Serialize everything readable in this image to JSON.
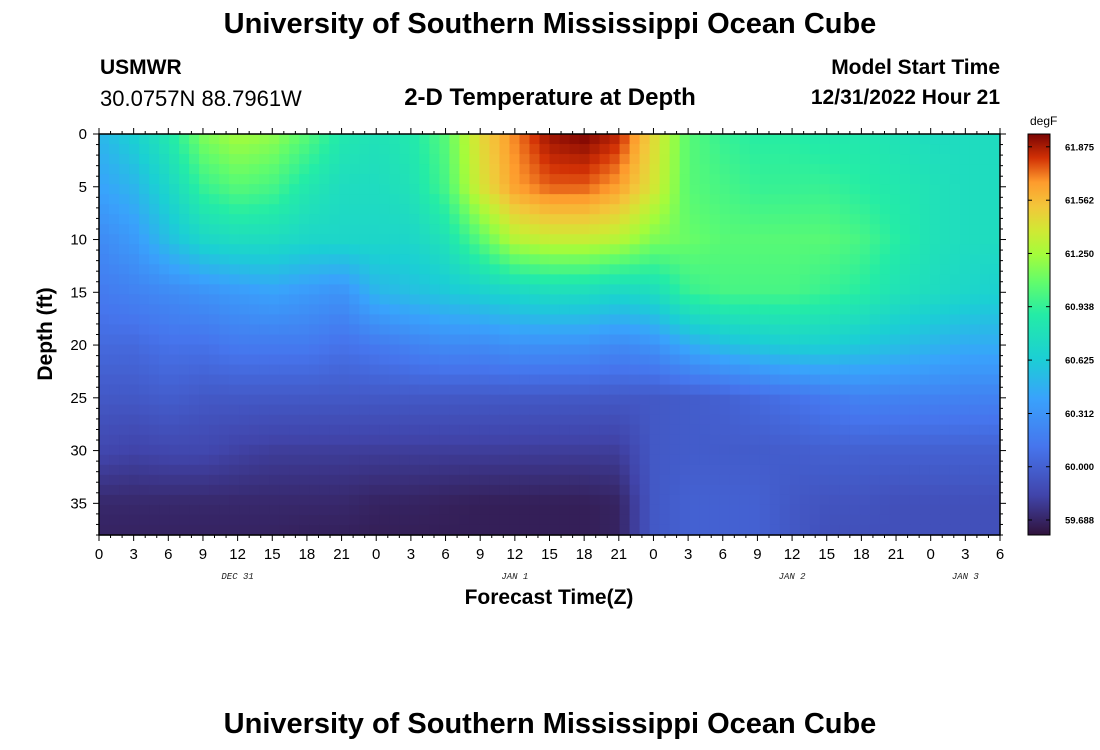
{
  "header": {
    "title": "University of Southern Mississippi Ocean Cube",
    "station": "USMWR",
    "coords": "30.0757N  88.7961W",
    "subtitle": "2-D Temperature at Depth",
    "model_start_label": "Model Start Time",
    "model_start_value": "12/31/2022 Hour 21"
  },
  "footer": {
    "title": "University of Southern Mississippi Ocean Cube"
  },
  "chart_data": {
    "type": "heatmap",
    "title": "2-D Temperature at Depth",
    "xlabel": "Forecast Time(Z)",
    "ylabel": "Depth (ft)",
    "x_range_hours": [
      0,
      78
    ],
    "y_range_ft": [
      0,
      38
    ],
    "y_inverted": true,
    "x_ticks": [
      "0",
      "3",
      "6",
      "9",
      "12",
      "15",
      "18",
      "21",
      "0",
      "3",
      "6",
      "9",
      "12",
      "15",
      "18",
      "21",
      "0",
      "3",
      "6",
      "9",
      "12",
      "15",
      "18",
      "21",
      "0",
      "3",
      "6"
    ],
    "y_ticks": [
      0,
      5,
      10,
      15,
      20,
      25,
      30,
      35
    ],
    "date_labels": [
      {
        "label": "DEC 31",
        "hour": 12
      },
      {
        "label": "JAN 1",
        "hour": 36
      },
      {
        "label": "JAN 2",
        "hour": 60
      },
      {
        "label": "JAN 3",
        "hour": 75
      }
    ],
    "colorbar": {
      "unit": "degF",
      "min": 59.6,
      "max": 61.95,
      "ticks": [
        59.688,
        60.0,
        60.312,
        60.625,
        60.938,
        61.25,
        61.562,
        61.875
      ],
      "tick_labels": [
        "59.688",
        "60.000",
        "60.312",
        "60.625",
        "60.938",
        "61.250",
        "61.562",
        "61.875"
      ]
    },
    "grid_depths_ft": [
      0,
      5,
      10,
      15,
      20,
      25,
      30,
      35,
      38
    ],
    "grid_hours": [
      0,
      3,
      6,
      9,
      12,
      15,
      18,
      21,
      24,
      27,
      30,
      33,
      36,
      39,
      42,
      45,
      48,
      51,
      54,
      57,
      60,
      63,
      66,
      69,
      72,
      75,
      78
    ],
    "values": [
      [
        60.5,
        60.65,
        60.85,
        61.15,
        61.25,
        61.2,
        61.05,
        60.85,
        60.8,
        60.85,
        61.05,
        61.45,
        61.7,
        61.9,
        61.95,
        61.85,
        61.45,
        61.05,
        60.95,
        60.9,
        60.9,
        60.85,
        60.85,
        60.8,
        60.75,
        60.75,
        60.75
      ],
      [
        60.4,
        60.5,
        60.7,
        60.95,
        61.05,
        61.0,
        60.85,
        60.75,
        60.75,
        60.8,
        61.0,
        61.4,
        61.65,
        61.75,
        61.75,
        61.65,
        61.4,
        61.05,
        61.0,
        60.95,
        60.95,
        60.95,
        60.9,
        60.85,
        60.8,
        60.75,
        60.75
      ],
      [
        60.25,
        60.35,
        60.55,
        60.7,
        60.75,
        60.75,
        60.7,
        60.7,
        60.7,
        60.7,
        60.8,
        61.05,
        61.3,
        61.35,
        61.35,
        61.3,
        61.15,
        61.1,
        61.05,
        61.05,
        61.05,
        61.05,
        61.0,
        60.9,
        60.8,
        60.75,
        60.75
      ],
      [
        60.15,
        60.2,
        60.25,
        60.3,
        60.35,
        60.4,
        60.35,
        60.3,
        60.5,
        60.55,
        60.6,
        60.65,
        60.7,
        60.75,
        60.75,
        60.7,
        60.75,
        60.95,
        61.0,
        61.0,
        61.0,
        60.95,
        60.9,
        60.8,
        60.75,
        60.7,
        60.65
      ],
      [
        60.05,
        60.05,
        60.1,
        60.1,
        60.15,
        60.15,
        60.15,
        60.1,
        60.15,
        60.2,
        60.25,
        60.25,
        60.3,
        60.3,
        60.3,
        60.25,
        60.3,
        60.45,
        60.55,
        60.6,
        60.65,
        60.65,
        60.6,
        60.55,
        60.5,
        60.45,
        60.45
      ],
      [
        59.95,
        59.95,
        59.98,
        59.95,
        59.95,
        59.95,
        59.95,
        59.95,
        59.95,
        59.95,
        59.95,
        59.95,
        59.95,
        59.95,
        59.95,
        59.95,
        59.95,
        59.97,
        60.0,
        60.05,
        60.1,
        60.15,
        60.2,
        60.2,
        60.2,
        60.2,
        60.2
      ],
      [
        59.85,
        59.83,
        59.85,
        59.85,
        59.82,
        59.8,
        59.8,
        59.8,
        59.8,
        59.8,
        59.8,
        59.8,
        59.8,
        59.8,
        59.8,
        59.8,
        59.95,
        59.97,
        59.97,
        59.97,
        59.98,
        60.0,
        60.0,
        60.0,
        60.0,
        60.0,
        60.0
      ],
      [
        59.7,
        59.7,
        59.7,
        59.7,
        59.7,
        59.7,
        59.7,
        59.7,
        59.68,
        59.68,
        59.67,
        59.66,
        59.66,
        59.66,
        59.66,
        59.68,
        59.95,
        60.0,
        60.0,
        60.0,
        59.95,
        59.92,
        59.92,
        59.9,
        59.9,
        59.9,
        59.9
      ],
      [
        59.68,
        59.68,
        59.68,
        59.68,
        59.68,
        59.68,
        59.67,
        59.67,
        59.66,
        59.66,
        59.66,
        59.66,
        59.66,
        59.66,
        59.66,
        59.68,
        59.95,
        60.0,
        60.0,
        60.0,
        59.95,
        59.9,
        59.9,
        59.9,
        59.9,
        59.9,
        59.9
      ]
    ]
  }
}
